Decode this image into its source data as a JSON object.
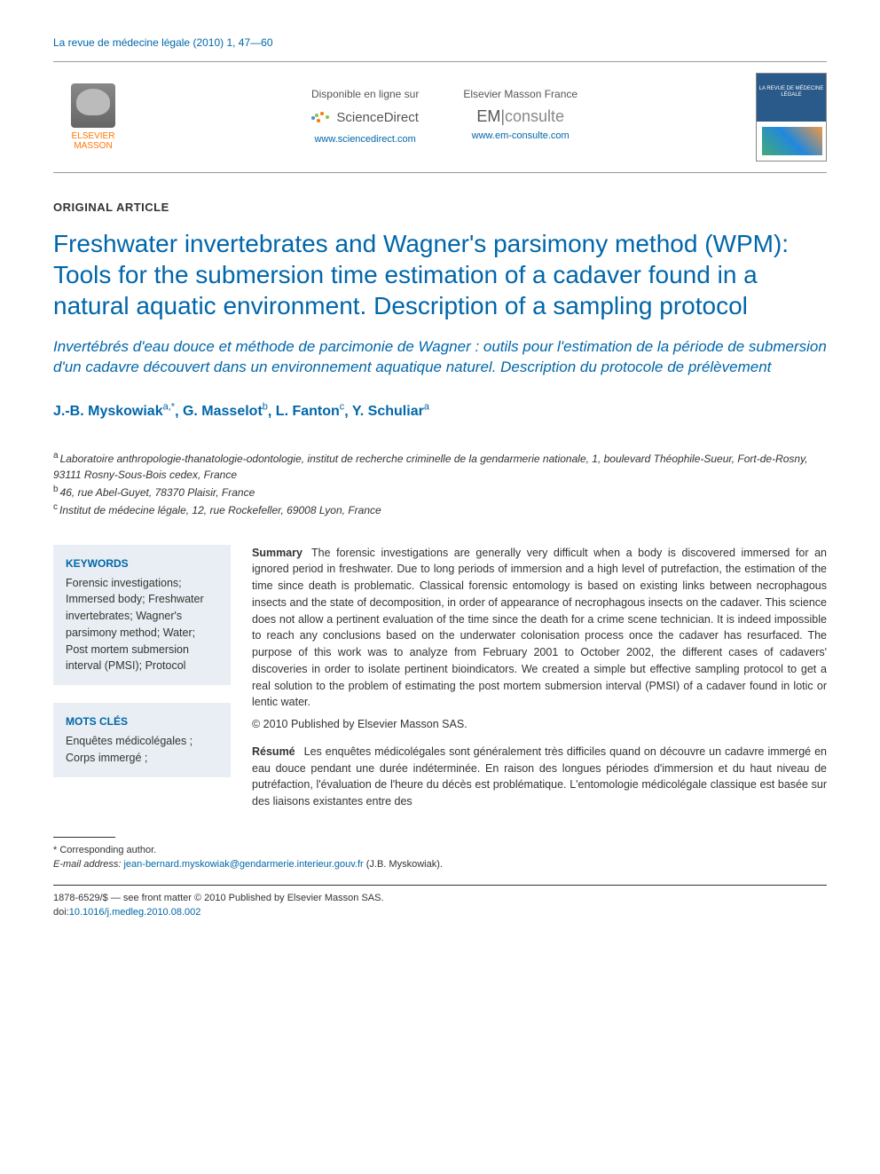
{
  "journal_ref": "La revue de médecine légale (2010) 1, 47—60",
  "header": {
    "publisher_name": "ELSEVIER MASSON",
    "left_col": {
      "top": "Disponible en ligne sur",
      "brand": "ScienceDirect",
      "url": "www.sciencedirect.com"
    },
    "right_col": {
      "top": "Elsevier Masson France",
      "brand_em": "EM",
      "brand_consulte": "consulte",
      "url": "www.em-consulte.com"
    },
    "cover_title": "LA REVUE DE MÉDECINE LÉGALE"
  },
  "article_type": "ORIGINAL ARTICLE",
  "title_en": "Freshwater invertebrates and Wagner's parsimony method (WPM): Tools for the submersion time estimation of a cadaver found in a natural aquatic environment. Description of a sampling protocol",
  "title_fr": "Invertébrés d'eau douce et méthode de parcimonie de Wagner : outils pour l'estimation de la période de submersion d'un cadavre découvert dans un environnement aquatique naturel. Description du protocole de prélèvement",
  "authors": [
    {
      "name": "J.-B. Myskowiak",
      "sup": "a,*"
    },
    {
      "name": "G. Masselot",
      "sup": "b"
    },
    {
      "name": "L. Fanton",
      "sup": "c"
    },
    {
      "name": "Y. Schuliar",
      "sup": "a"
    }
  ],
  "affiliations": [
    {
      "sup": "a",
      "text": "Laboratoire anthropologie-thanatologie-odontologie, institut de recherche criminelle de la gendarmerie nationale, 1, boulevard Théophile-Sueur, Fort-de-Rosny, 93111 Rosny-Sous-Bois cedex, France"
    },
    {
      "sup": "b",
      "text": "46, rue Abel-Guyet, 78370 Plaisir, France"
    },
    {
      "sup": "c",
      "text": "Institut de médecine légale, 12, rue Rockefeller, 69008 Lyon, France"
    }
  ],
  "keywords": {
    "heading": "KEYWORDS",
    "items": "Forensic investigations; Immersed body; Freshwater invertebrates; Wagner's parsimony method; Water; Post mortem submersion interval (PMSI); Protocol"
  },
  "motscles": {
    "heading": "MOTS CLÉS",
    "items": "Enquêtes médicolégales ; Corps immergé ;"
  },
  "summary": {
    "label": "Summary",
    "text": "The forensic investigations are generally very difficult when a body is discovered immersed for an ignored period in freshwater. Due to long periods of immersion and a high level of putrefaction, the estimation of the time since death is problematic. Classical forensic entomology is based on existing links between necrophagous insects and the state of decomposition, in order of appearance of necrophagous insects on the cadaver. This science does not allow a pertinent evaluation of the time since the death for a crime scene technician. It is indeed impossible to reach any conclusions based on the underwater colonisation process once the cadaver has resurfaced. The purpose of this work was to analyze from February 2001 to October 2002, the different cases of cadavers' discoveries in order to isolate pertinent bioindicators. We created a simple but effective sampling protocol to get a real solution to the problem of estimating the post mortem submersion interval (PMSI) of a cadaver found in lotic or lentic water.",
    "copyright": "© 2010 Published by Elsevier Masson SAS."
  },
  "resume": {
    "label": "Résumé",
    "text": "Les enquêtes médicolégales sont généralement très difficiles quand on découvre un cadavre immergé en eau douce pendant une durée indéterminée. En raison des longues périodes d'immersion et du haut niveau de putréfaction, l'évaluation de l'heure du décès est problématique. L'entomologie médicolégale classique est basée sur des liaisons existantes entre des"
  },
  "corresponding": {
    "star": "* Corresponding author.",
    "email_label": "E-mail address:",
    "email": "jean-bernard.myskowiak@gendarmerie.interieur.gouv.fr",
    "email_name": "(J.B. Myskowiak)."
  },
  "footer": {
    "line1": "1878-6529/$ — see front matter © 2010 Published by Elsevier Masson SAS.",
    "doi_label": "doi:",
    "doi": "10.1016/j.medleg.2010.08.002"
  },
  "colors": {
    "link_blue": "#0066aa",
    "kw_bg": "#e8eef3",
    "publisher_orange": "#ff7700"
  },
  "typography": {
    "title_fontsize": 28,
    "subtitle_fontsize": 17,
    "authors_fontsize": 16,
    "body_fontsize": 12.5
  }
}
